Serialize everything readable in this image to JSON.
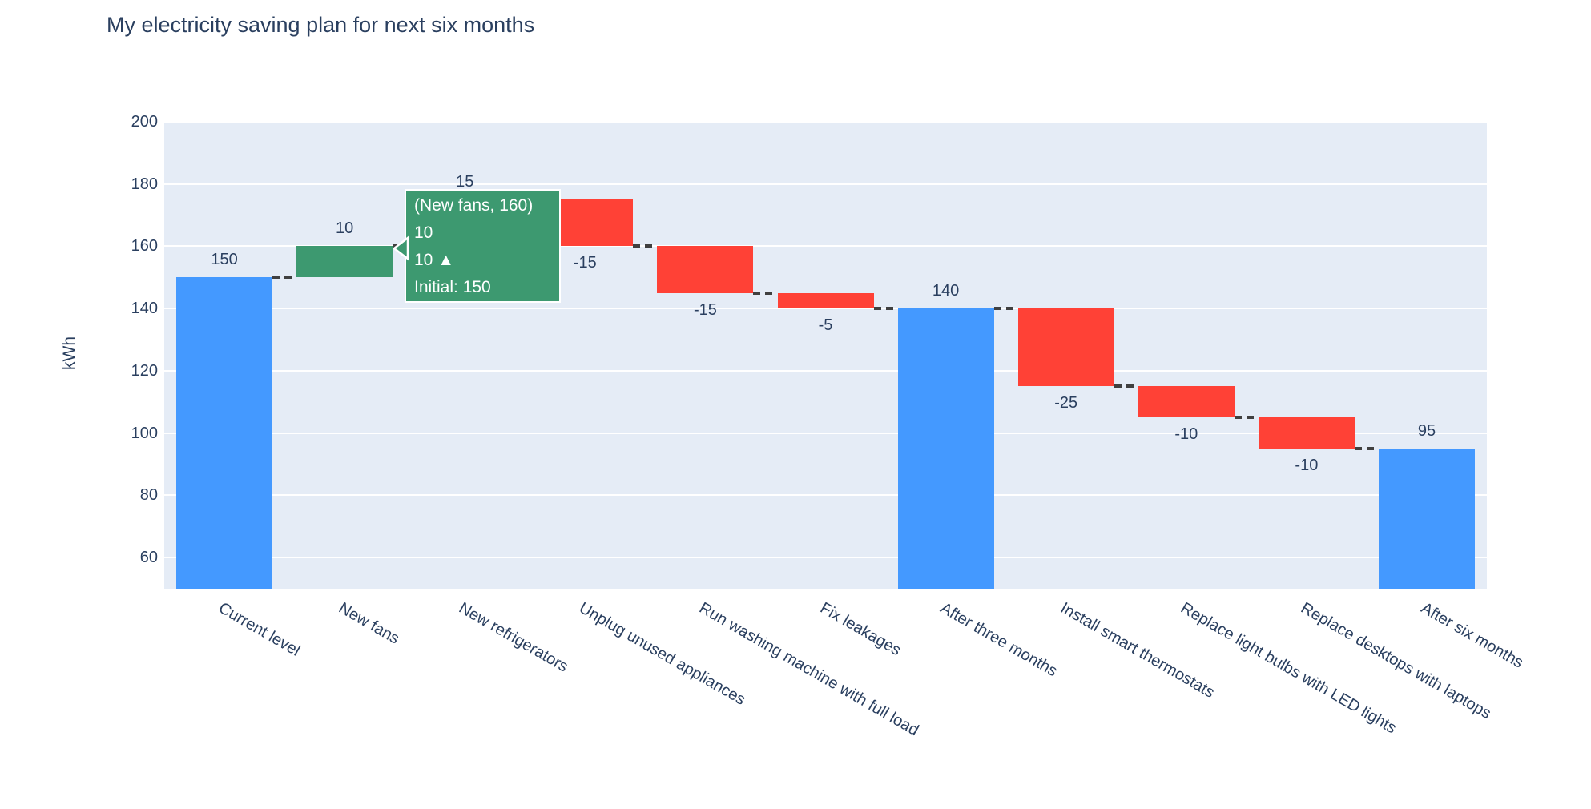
{
  "chart_data": {
    "type": "waterfall",
    "title": "My electricity saving plan for next six months",
    "xlabel": "",
    "ylabel": "kWh",
    "ylim": [
      50,
      200
    ],
    "yticks": [
      60,
      80,
      100,
      120,
      140,
      160,
      180,
      200
    ],
    "grid": true,
    "legend": false,
    "categories": [
      "Current level",
      "New fans",
      "New refrigerators",
      "Unplug unused appliances",
      "Run washing machine with full load",
      "Fix leakages",
      "After three months",
      "Install smart thermostats",
      "Replace light bulbs with LED lights",
      "Replace desktops with laptops",
      "After six months"
    ],
    "measures": [
      "absolute",
      "relative",
      "relative",
      "relative",
      "relative",
      "relative",
      "total",
      "relative",
      "relative",
      "relative",
      "total"
    ],
    "values": [
      150,
      10,
      15,
      -15,
      -15,
      -5,
      140,
      -25,
      -10,
      -10,
      95
    ],
    "bar_labels": [
      "150",
      "10",
      "15",
      "-15",
      "-15",
      "-5",
      "140",
      "-25",
      "-10",
      "-10",
      "95"
    ],
    "running_totals": [
      150,
      160,
      175,
      160,
      145,
      140,
      140,
      115,
      105,
      95,
      95
    ],
    "colors": {
      "increasing": "#3D9970",
      "decreasing": "#FF4136",
      "total": "#4499FF",
      "connector": "#404040",
      "plot_background": "#E5ECF6",
      "gridline": "#ffffff",
      "font": "#2a3f5f"
    }
  },
  "tooltip": {
    "title": "(New fans, 160)",
    "value_line": "10",
    "delta_line": "10 ▲",
    "initial_line": "Initial: 150",
    "background": "#3D9970"
  }
}
